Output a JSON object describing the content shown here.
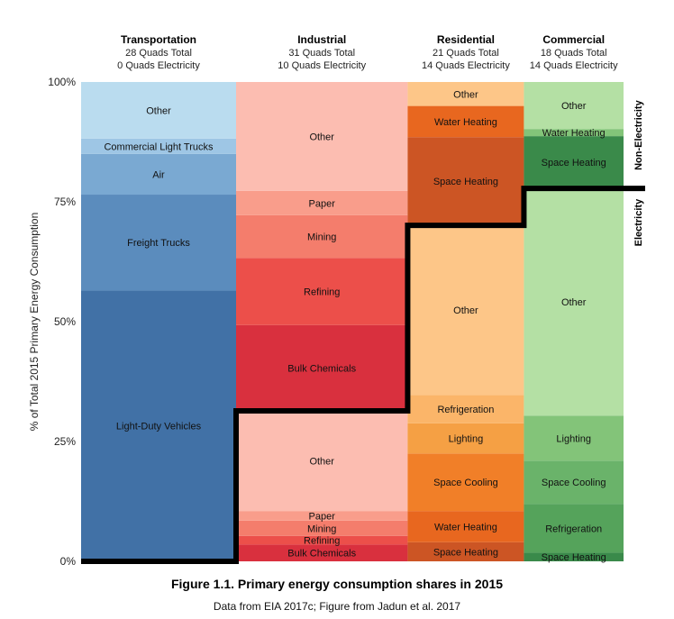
{
  "chart_data": {
    "type": "marimekko",
    "ylabel": "% of Total 2015 Primary Energy Consumption",
    "y_ticks": [
      "100%",
      "75%",
      "50%",
      "25%",
      "0%"
    ],
    "y_tick_values": [
      100,
      75,
      50,
      25,
      0
    ],
    "ylim": [
      0,
      100
    ],
    "side_labels": {
      "upper": "Non-Electricity",
      "lower": "Electricity"
    },
    "columns": [
      {
        "name": "Transportation",
        "total": "28 Quads Total",
        "electricity": "0 Quads Electricity",
        "width_quads": 28,
        "electricity_share": 0,
        "segments": [
          {
            "label": "Light-Duty Vehicles",
            "from": 0,
            "to": 56.5,
            "color": "#4171a6"
          },
          {
            "label": "Freight Trucks",
            "from": 56.5,
            "to": 76.5,
            "color": "#5b8cbd"
          },
          {
            "label": "Air",
            "from": 76.5,
            "to": 85,
            "color": "#7aa9d2"
          },
          {
            "label": "Commercial Light Trucks",
            "from": 85,
            "to": 88.2,
            "color": "#9ec6e5"
          },
          {
            "label": "Other",
            "from": 88.2,
            "to": 100,
            "color": "#badcef"
          }
        ]
      },
      {
        "name": "Industrial",
        "total": "31 Quads Total",
        "electricity": "10 Quads Electricity",
        "width_quads": 31,
        "electricity_share": 31.4,
        "segments": [
          {
            "label": "Bulk Chemicals",
            "from": 0,
            "to": 3.5,
            "color": "#d9303e"
          },
          {
            "label": "Refining",
            "from": 3.5,
            "to": 5.3,
            "color": "#ec4f4a"
          },
          {
            "label": "Mining",
            "from": 5.3,
            "to": 8.5,
            "color": "#f47d6c"
          },
          {
            "label": "Paper",
            "from": 8.5,
            "to": 10.5,
            "color": "#f99d8b"
          },
          {
            "label": "Other",
            "from": 10.5,
            "to": 31.4,
            "color": "#fcbdb1"
          },
          {
            "label": "Bulk Chemicals",
            "from": 31.4,
            "to": 49.3,
            "color": "#d9303e"
          },
          {
            "label": "Refining",
            "from": 49.3,
            "to": 63.3,
            "color": "#ec4f4a"
          },
          {
            "label": "Mining",
            "from": 63.3,
            "to": 72.2,
            "color": "#f47d6c"
          },
          {
            "label": "Paper",
            "from": 72.2,
            "to": 77.3,
            "color": "#f99d8b"
          },
          {
            "label": "Other",
            "from": 77.3,
            "to": 100,
            "color": "#fcbdb1"
          }
        ]
      },
      {
        "name": "Residential",
        "total": "21 Quads Total",
        "electricity": "14 Quads Electricity",
        "width_quads": 21,
        "electricity_share": 70.1,
        "segments": [
          {
            "label": "Space Heating",
            "from": 0,
            "to": 4,
            "color": "#cc5524"
          },
          {
            "label": "Water Heating",
            "from": 4,
            "to": 10.5,
            "color": "#e8671f"
          },
          {
            "label": "Space Cooling",
            "from": 10.5,
            "to": 22.5,
            "color": "#f17f28"
          },
          {
            "label": "Lighting",
            "from": 22.5,
            "to": 28.8,
            "color": "#f5a044"
          },
          {
            "label": "Refrigeration",
            "from": 28.8,
            "to": 34.7,
            "color": "#fbb569"
          },
          {
            "label": "Other",
            "from": 34.7,
            "to": 70.1,
            "color": "#fdc688"
          },
          {
            "label": "Space Heating",
            "from": 70.1,
            "to": 88.5,
            "color": "#cc5524"
          },
          {
            "label": "Water Heating",
            "from": 88.5,
            "to": 95,
            "color": "#e8671f"
          },
          {
            "label": "Other",
            "from": 95,
            "to": 100,
            "color": "#fdc688"
          }
        ]
      },
      {
        "name": "Commercial",
        "total": "18 Quads Total",
        "electricity": "14 Quads Electricity",
        "width_quads": 18,
        "electricity_share": 77.8,
        "segments": [
          {
            "label": "Space Heating",
            "from": 0,
            "to": 1.8,
            "color": "#3a8a4a"
          },
          {
            "label": "Refrigeration",
            "from": 1.8,
            "to": 12,
            "color": "#55a35b"
          },
          {
            "label": "Space Cooling",
            "from": 12,
            "to": 21,
            "color": "#6ab36a"
          },
          {
            "label": "Lighting",
            "from": 21,
            "to": 30.4,
            "color": "#83c479"
          },
          {
            "label": "Other",
            "from": 30.4,
            "to": 77.8,
            "color": "#b4e0a4"
          },
          {
            "label": "Space Heating",
            "from": 77.8,
            "to": 88.7,
            "color": "#3a8a4a"
          },
          {
            "label": "Water Heating",
            "from": 88.7,
            "to": 90.2,
            "color": "#83c479"
          },
          {
            "label": "Other",
            "from": 90.2,
            "to": 100,
            "color": "#b4e0a4"
          }
        ]
      }
    ]
  },
  "caption": "Figure 1.1. Primary energy consumption shares in 2015",
  "source": "Data from EIA 2017c; Figure from Jadun et al. 2017"
}
